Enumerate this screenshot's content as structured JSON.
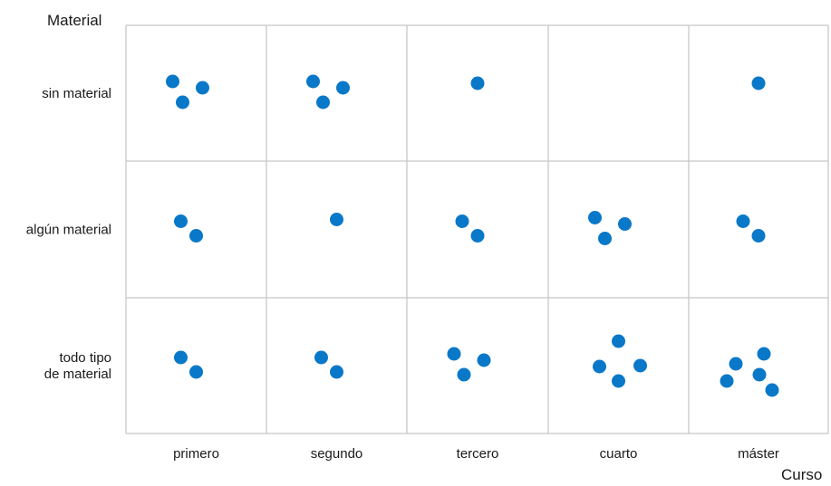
{
  "chart_data": {
    "type": "scatter",
    "ylabel": "Material",
    "xlabel": "Curso",
    "categories_x": [
      "primero",
      "segundo",
      "tercero",
      "cuarto",
      "máster"
    ],
    "categories_y": [
      [
        "sin material"
      ],
      [
        "algún material"
      ],
      [
        "todo tipo",
        "de material"
      ]
    ],
    "grid": true,
    "marker_color": "#0a78c8",
    "cells": [
      {
        "x": "primero",
        "y": "sin material",
        "count": 3
      },
      {
        "x": "segundo",
        "y": "sin material",
        "count": 3
      },
      {
        "x": "tercero",
        "y": "sin material",
        "count": 1
      },
      {
        "x": "cuarto",
        "y": "sin material",
        "count": 0
      },
      {
        "x": "máster",
        "y": "sin material",
        "count": 1
      },
      {
        "x": "primero",
        "y": "algún material",
        "count": 2
      },
      {
        "x": "segundo",
        "y": "algún material",
        "count": 1
      },
      {
        "x": "tercero",
        "y": "algún material",
        "count": 2
      },
      {
        "x": "cuarto",
        "y": "algún material",
        "count": 3
      },
      {
        "x": "máster",
        "y": "algún material",
        "count": 2
      },
      {
        "x": "primero",
        "y": "todo tipo de material",
        "count": 2
      },
      {
        "x": "segundo",
        "y": "todo tipo de material",
        "count": 2
      },
      {
        "x": "tercero",
        "y": "todo tipo de material",
        "count": 3
      },
      {
        "x": "cuarto",
        "y": "todo tipo de material",
        "count": 4
      },
      {
        "x": "máster",
        "y": "todo tipo de material",
        "count": 5
      }
    ]
  }
}
